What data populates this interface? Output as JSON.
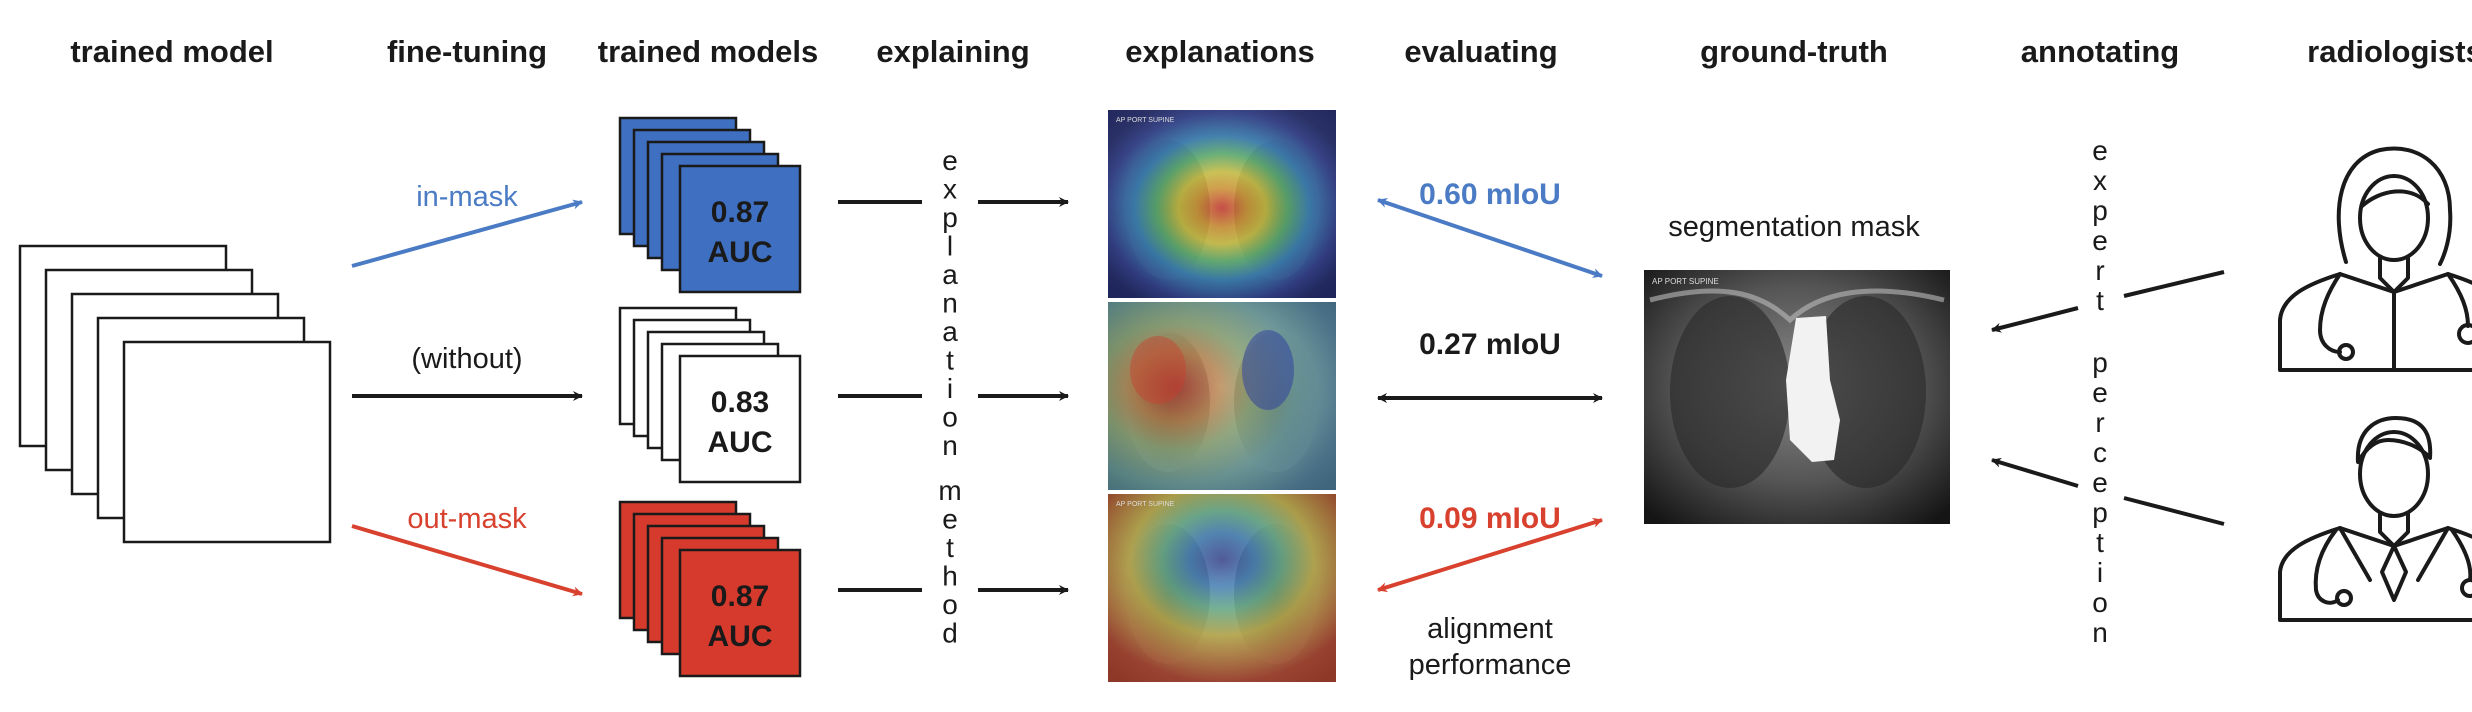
{
  "colors": {
    "blue": "#4a7bc4",
    "red": "#d9412f",
    "black": "#1a1a1a",
    "blue_fill": "#3f6fc0",
    "red_fill": "#d63a2c"
  },
  "headers": {
    "trained_model": "trained model",
    "fine_tuning": "fine-tuning",
    "trained_models": "trained models",
    "explaining": "explaining",
    "explanations": "explanations",
    "evaluating": "evaluating",
    "ground_truth": "ground-truth",
    "annotating": "annotating",
    "radiologists": "radiologists"
  },
  "fine_tuning": {
    "in_mask": "in-mask",
    "without": "(without)",
    "out_mask": "out-mask"
  },
  "models": {
    "in_mask": {
      "score": "0.87",
      "metric": "AUC"
    },
    "without": {
      "score": "0.83",
      "metric": "AUC"
    },
    "out_mask": {
      "score": "0.87",
      "metric": "AUC"
    }
  },
  "explanation_method": {
    "word1": "explanation",
    "word2": "method"
  },
  "explanations": {
    "xray_label": "AP PORT SUPINE"
  },
  "evaluating": {
    "in_mask": "0.60 mIoU",
    "without": "0.27 mIoU",
    "out_mask": "0.09 mIoU",
    "alignment_line1": "alignment",
    "alignment_line2": "performance"
  },
  "ground_truth": {
    "title": "segmentation mask"
  },
  "expert_perception": {
    "word1": "expert",
    "word2": "perception"
  },
  "radiologists": {
    "female": "radiologist-female-icon",
    "male": "radiologist-male-icon"
  }
}
